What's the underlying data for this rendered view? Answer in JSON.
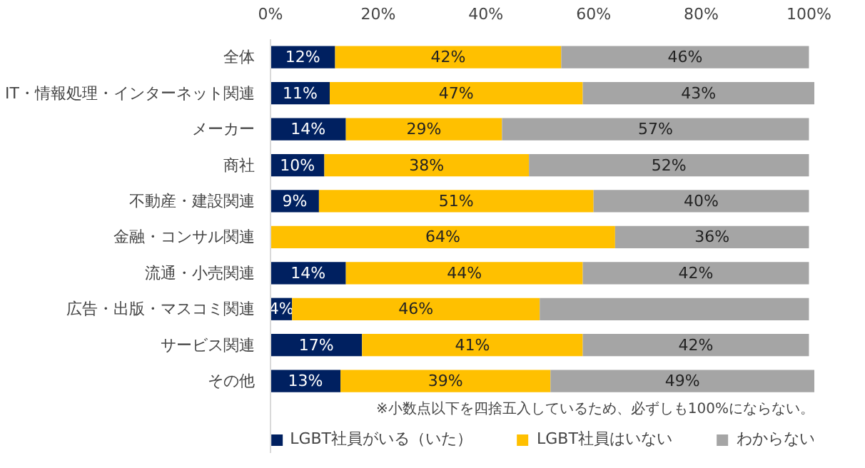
{
  "chart_data": {
    "type": "bar",
    "orientation": "horizontal",
    "stacked": true,
    "categories": [
      "全体",
      "IT・情報処理・インターネット関連",
      "メーカー",
      "商社",
      "不動産・建設関連",
      "金融・コンサル関連",
      "流通・小売関連",
      "広告・出版・マスコミ関連",
      "サービス関連",
      "その他"
    ],
    "series": [
      {
        "name": "LGBT社員がいる（いた）",
        "color": "#002060",
        "values": [
          12,
          11,
          14,
          10,
          9,
          0,
          14,
          4,
          17,
          13
        ],
        "value_labels": [
          "12%",
          "11%",
          "14%",
          "10%",
          "9%",
          null,
          "14%",
          "4%",
          "17%",
          "13%"
        ]
      },
      {
        "name": "LGBT社員はいない",
        "color": "#ffc000",
        "values": [
          42,
          47,
          29,
          38,
          51,
          64,
          44,
          46,
          41,
          39
        ],
        "value_labels": [
          "42%",
          "47%",
          "29%",
          "38%",
          "51%",
          "64%",
          "44%",
          "46%",
          "41%",
          "39%"
        ]
      },
      {
        "name": "わからない",
        "color": "#a5a5a5",
        "values": [
          46,
          43,
          57,
          52,
          40,
          36,
          42,
          50,
          42,
          49
        ],
        "value_labels": [
          "46%",
          "43%",
          "57%",
          "52%",
          "40%",
          "36%",
          "42%",
          null,
          "42%",
          "49%"
        ]
      }
    ],
    "xlim": [
      0,
      101
    ],
    "xticks": [
      {
        "value": 0,
        "label": "0%"
      },
      {
        "value": 20,
        "label": "20%"
      },
      {
        "value": 40,
        "label": "40%"
      },
      {
        "value": 60,
        "label": "60%"
      },
      {
        "value": 80,
        "label": "80%"
      },
      {
        "value": 100,
        "label": "100%"
      }
    ],
    "grid": false,
    "legend": "bottom",
    "annotations": [
      "※小数点以下を四捨五入しているため、必ずしも100%にならない。"
    ]
  }
}
